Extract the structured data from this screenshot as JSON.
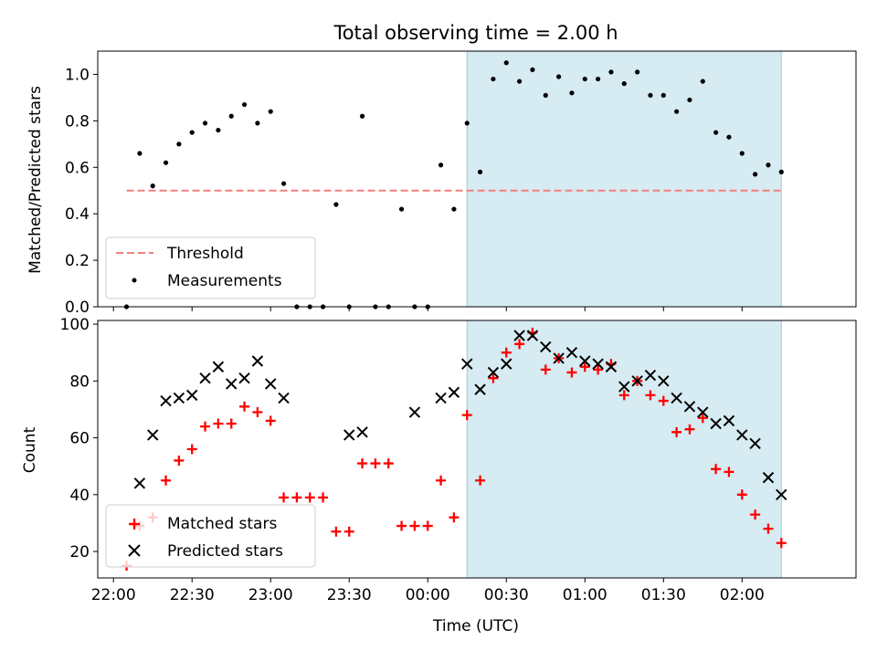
{
  "chart_data": {
    "type": "scatter",
    "title": "Total observing time = 2.00 h",
    "x_axis": {
      "label": "Time (UTC)",
      "ticks": [
        "22:00",
        "22:30",
        "23:00",
        "23:30",
        "00:00",
        "00:30",
        "01:00",
        "01:30",
        "02:00"
      ],
      "tick_minutes": [
        0,
        30,
        60,
        90,
        120,
        150,
        180,
        210,
        240
      ],
      "range_minutes": [
        -6,
        283.5
      ]
    },
    "highlight_interval": {
      "start": "00:15",
      "end": "02:15"
    },
    "panels": [
      {
        "id": "ratio",
        "ylabel": "Matched/Predicted stars",
        "ylim": [
          0,
          1.1
        ],
        "yticks": [
          "0.0",
          "0.2",
          "0.4",
          "0.6",
          "0.8",
          "1.0"
        ],
        "ytick_values": [
          0,
          0.2,
          0.4,
          0.6,
          0.8,
          1.0
        ],
        "legend": {
          "placement": "lower-left",
          "entries": [
            "Threshold",
            "Measurements"
          ]
        },
        "series": [
          {
            "name": "Threshold",
            "style": "dashed-line",
            "color": "#f08080",
            "x": [
              "22:05",
              "02:15"
            ],
            "y": [
              0.5,
              0.5
            ]
          },
          {
            "name": "Measurements",
            "style": "dot",
            "color": "#000000",
            "x": [
              "22:05",
              "22:10",
              "22:15",
              "22:20",
              "22:25",
              "22:30",
              "22:35",
              "22:40",
              "22:45",
              "22:50",
              "22:55",
              "23:00",
              "23:05",
              "23:10",
              "23:15",
              "23:20",
              "23:25",
              "23:30",
              "23:35",
              "23:40",
              "23:45",
              "23:50",
              "23:55",
              "00:00",
              "00:05",
              "00:10",
              "00:15",
              "00:20",
              "00:25",
              "00:30",
              "00:35",
              "00:40",
              "00:45",
              "00:50",
              "00:55",
              "01:00",
              "01:05",
              "01:10",
              "01:15",
              "01:20",
              "01:25",
              "01:30",
              "01:35",
              "01:40",
              "01:45",
              "01:50",
              "01:55",
              "02:00",
              "02:05",
              "02:10",
              "02:15"
            ],
            "y": [
              0.0,
              0.66,
              0.52,
              0.62,
              0.7,
              0.75,
              0.79,
              0.76,
              0.82,
              0.87,
              0.79,
              0.84,
              0.53,
              0.0,
              0.0,
              0.0,
              0.44,
              0.0,
              0.82,
              0.0,
              0.0,
              0.42,
              0.0,
              0.0,
              0.61,
              0.42,
              0.79,
              0.58,
              0.98,
              1.05,
              0.97,
              1.02,
              0.91,
              0.99,
              0.92,
              0.98,
              0.98,
              1.01,
              0.96,
              1.01,
              0.91,
              0.91,
              0.84,
              0.89,
              0.97,
              0.75,
              0.73,
              0.66,
              0.57,
              0.61,
              0.58
            ]
          }
        ]
      },
      {
        "id": "counts",
        "ylabel": "Count",
        "ylim": [
          10.7,
          101.3
        ],
        "yticks": [
          "20",
          "40",
          "60",
          "80",
          "100"
        ],
        "ytick_values": [
          20,
          40,
          60,
          80,
          100
        ],
        "legend": {
          "placement": "lower-left",
          "entries": [
            "Matched stars",
            "Predicted stars"
          ]
        },
        "series": [
          {
            "name": "Matched stars",
            "style": "plus",
            "color": "#ff0000",
            "x": [
              "22:05",
              "22:10",
              "22:15",
              "22:20",
              "22:25",
              "22:30",
              "22:35",
              "22:40",
              "22:45",
              "22:50",
              "22:55",
              "23:00",
              "23:05",
              "23:10",
              "23:15",
              "23:20",
              "23:25",
              "23:30",
              "23:35",
              "23:40",
              "23:45",
              "23:50",
              "23:55",
              "00:00",
              "00:05",
              "00:10",
              "00:15",
              "00:20",
              "00:25",
              "00:30",
              "00:35",
              "00:40",
              "00:45",
              "00:50",
              "00:55",
              "01:00",
              "01:05",
              "01:10",
              "01:15",
              "01:20",
              "01:25",
              "01:30",
              "01:35",
              "01:40",
              "01:45",
              "01:50",
              "01:55",
              "02:00",
              "02:05",
              "02:10",
              "02:15"
            ],
            "y": [
              15,
              29,
              32,
              45,
              52,
              56,
              64,
              65,
              65,
              71,
              69,
              66,
              39,
              39,
              39,
              39,
              27,
              27,
              51,
              51,
              51,
              29,
              29,
              29,
              45,
              32,
              68,
              45,
              81,
              90,
              93,
              97,
              84,
              88,
              83,
              85,
              84,
              86,
              75,
              80,
              75,
              73,
              62,
              63,
              67,
              49,
              48,
              40,
              33,
              28,
              23
            ]
          },
          {
            "name": "Predicted stars",
            "style": "cross",
            "color": "#000000",
            "x": [
              "22:10",
              "22:15",
              "22:20",
              "22:25",
              "22:30",
              "22:35",
              "22:40",
              "22:45",
              "22:50",
              "22:55",
              "23:00",
              "23:05",
              "23:30",
              "23:35",
              "23:55",
              "00:05",
              "00:10",
              "00:15",
              "00:20",
              "00:25",
              "00:30",
              "00:35",
              "00:40",
              "00:45",
              "00:50",
              "00:55",
              "01:00",
              "01:05",
              "01:10",
              "01:15",
              "01:20",
              "01:25",
              "01:30",
              "01:35",
              "01:40",
              "01:45",
              "01:50",
              "01:55",
              "02:00",
              "02:05",
              "02:10",
              "02:15"
            ],
            "y": [
              44,
              61,
              73,
              74,
              75,
              81,
              85,
              79,
              81,
              87,
              79,
              74,
              61,
              62,
              69,
              74,
              76,
              86,
              77,
              83,
              86,
              96,
              96,
              92,
              88,
              90,
              87,
              86,
              85,
              78,
              80,
              82,
              80,
              74,
              71,
              69,
              65,
              66,
              61,
              58,
              46,
              40
            ]
          }
        ]
      }
    ]
  }
}
